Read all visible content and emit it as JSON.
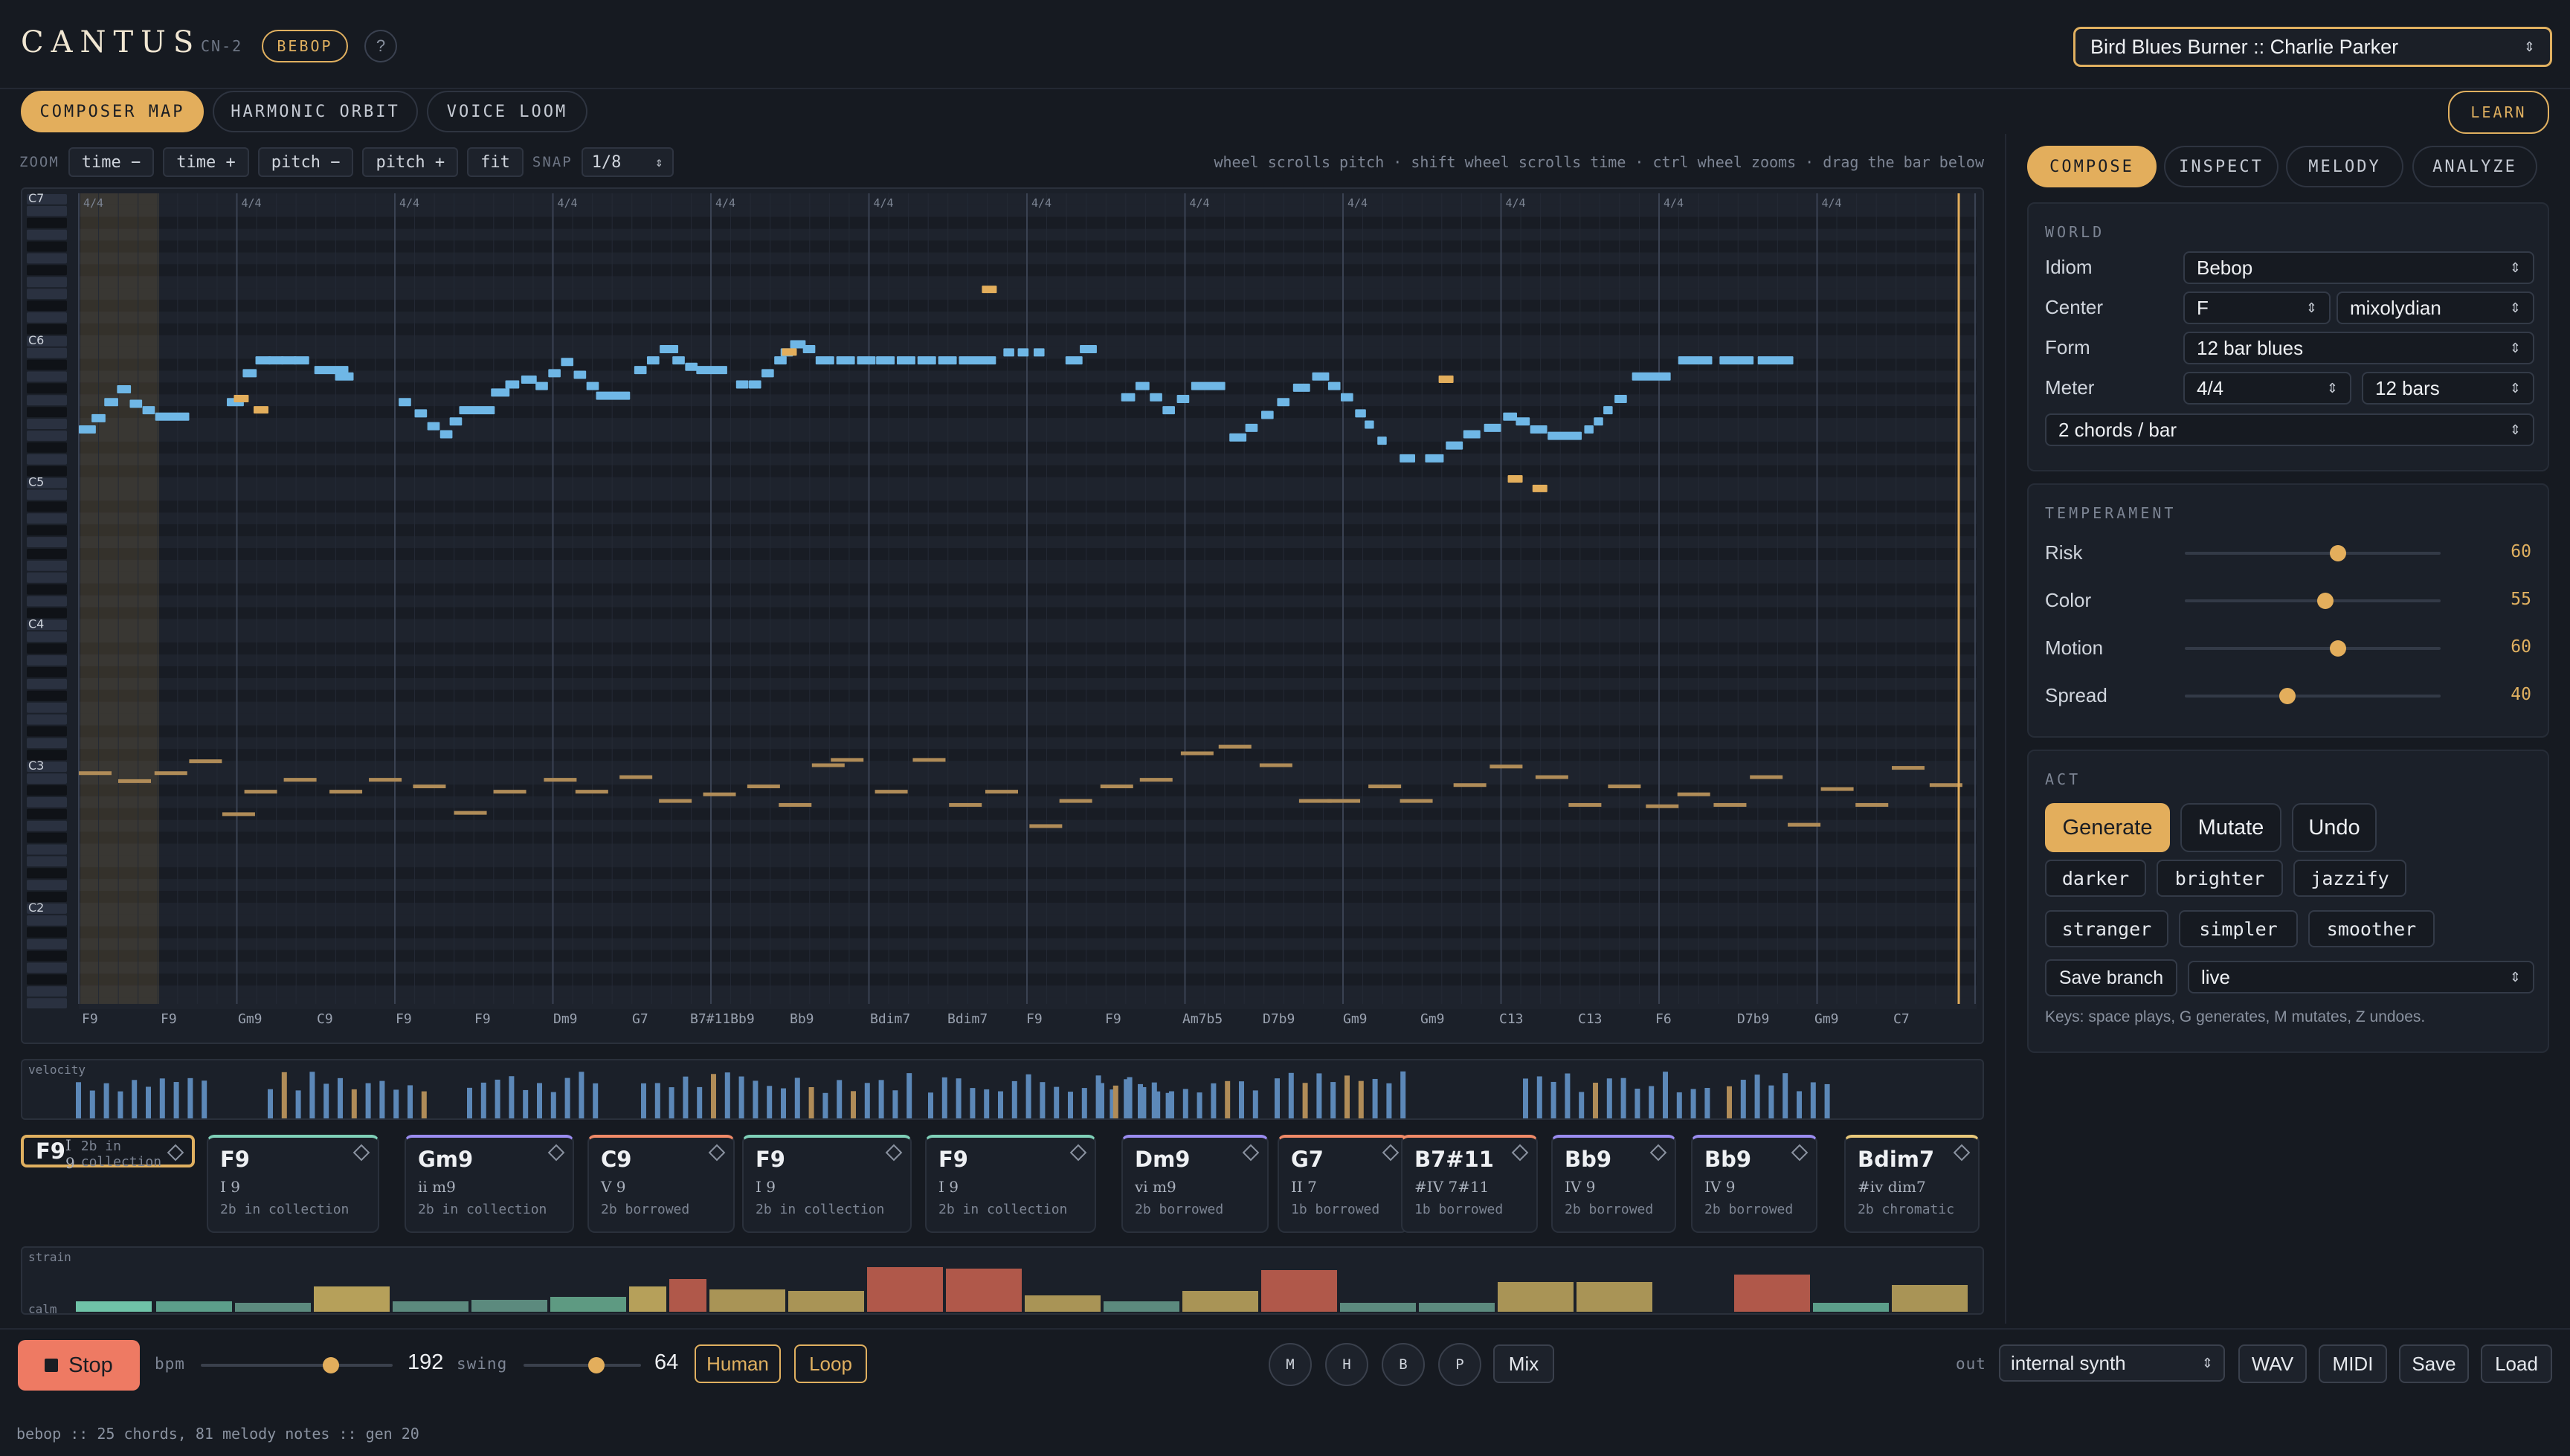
{
  "app": {
    "name": "CANTUS",
    "model": "CN-2",
    "idiom_badge": "BEBOP",
    "help": "?",
    "tune": "Bird Blues Burner :: Charlie Parker"
  },
  "view_tabs": [
    "COMPOSER MAP",
    "HARMONIC ORBIT",
    "VOICE LOOM"
  ],
  "learn": "LEARN",
  "zoom": {
    "label": "ZOOM",
    "time_minus": "time −",
    "time_plus": "time +",
    "pitch_minus": "pitch −",
    "pitch_plus": "pitch +",
    "fit": "fit",
    "snap_label": "SNAP",
    "snap_value": "1/8",
    "hint": "wheel scrolls pitch · shift wheel scrolls time · ctrl wheel zooms · drag the bar below"
  },
  "octaves": [
    "C7",
    "C6",
    "C5",
    "C4",
    "C3",
    "C2"
  ],
  "meter_marker": "4/4",
  "chord_axis": [
    "F9",
    "F9",
    "Gm9",
    "C9",
    "F9",
    "F9",
    "Dm9",
    "G7",
    "B7#11Bb9",
    "Bb9",
    "Bdim7",
    "Bdim7",
    "F9",
    "F9",
    "Am7b5",
    "D7b9",
    "Gm9",
    "Gm9",
    "C13",
    "C13",
    "F6",
    "D7b9",
    "Gm9",
    "C7"
  ],
  "velocity_label": "velocity",
  "chord_cards": [
    {
      "name": "F9",
      "func": "I 9",
      "coll": "2b in collection",
      "color": "#e0b060"
    },
    {
      "name": "F9",
      "func": "I 9",
      "coll": "2b in collection",
      "color": "#7fd0b8"
    },
    {
      "name": "Gm9",
      "func": "ii m9",
      "coll": "2b in collection",
      "color": "#9a8cf0"
    },
    {
      "name": "C9",
      "func": "V 9",
      "coll": "2b borrowed",
      "color": "#f08a68"
    },
    {
      "name": "F9",
      "func": "I 9",
      "coll": "2b in collection",
      "color": "#7fd0b8"
    },
    {
      "name": "F9",
      "func": "I 9",
      "coll": "2b in collection",
      "color": "#7fd0b8"
    },
    {
      "name": "Dm9",
      "func": "vi m9",
      "coll": "2b borrowed",
      "color": "#9a8cf0"
    },
    {
      "name": "G7",
      "func": "II 7",
      "coll": "1b borrowed",
      "color": "#f08a68"
    },
    {
      "name": "B7#11",
      "func": "#IV 7#11",
      "coll": "1b borrowed",
      "color": "#f08a68"
    },
    {
      "name": "Bb9",
      "func": "IV 9",
      "coll": "2b borrowed",
      "color": "#9a8cf0"
    },
    {
      "name": "Bb9",
      "func": "IV 9",
      "coll": "2b borrowed",
      "color": "#9a8cf0"
    },
    {
      "name": "Bdim7",
      "func": "#iv dim7",
      "coll": "2b chromatic",
      "color": "#e8c87a"
    }
  ],
  "strain": {
    "top": "strain",
    "bottom": "calm"
  },
  "transport": {
    "stop": "Stop",
    "bpm_label": "bpm",
    "bpm": "192",
    "bpm_level": 0.68,
    "swing_label": "swing",
    "swing": "64",
    "swing_level": 0.62,
    "human": "Human",
    "loop": "Loop",
    "mute_buttons": [
      "M",
      "H",
      "B",
      "P"
    ],
    "mix": "Mix",
    "out_label": "out",
    "out_value": "internal synth",
    "wav": "WAV",
    "midi": "MIDI",
    "save": "Save",
    "load": "Load"
  },
  "status": "bebop :: 25 chords, 81 melody notes :: gen 20",
  "side_tabs": [
    "COMPOSE",
    "INSPECT",
    "MELODY",
    "ANALYZE"
  ],
  "world": {
    "title": "WORLD",
    "idiom_label": "Idiom",
    "idiom": "Bebop",
    "center_label": "Center",
    "center_key": "F",
    "center_mode": "mixolydian",
    "form_label": "Form",
    "form": "12 bar blues",
    "meter_label": "Meter",
    "meter": "4/4",
    "bars": "12 bars",
    "density": "2 chords / bar"
  },
  "temperament": {
    "title": "TEMPERAMENT",
    "sliders": [
      {
        "label": "Risk",
        "value": "60",
        "level": 0.6
      },
      {
        "label": "Color",
        "value": "55",
        "level": 0.55
      },
      {
        "label": "Motion",
        "value": "60",
        "level": 0.6
      },
      {
        "label": "Spread",
        "value": "40",
        "level": 0.4
      }
    ]
  },
  "act": {
    "title": "ACT",
    "generate": "Generate",
    "mutate": "Mutate",
    "undo": "Undo",
    "moods": [
      "darker",
      "brighter",
      "jazzify",
      "stranger",
      "simpler",
      "smoother"
    ],
    "save_branch": "Save branch",
    "branch": "live",
    "keys_note": "Keys: space plays, G generates, M mutates, Z undoes."
  },
  "colors": {
    "accent": "#e3ae5c",
    "melody": "#6fb7e6",
    "bass": "#b08c58",
    "stop": "#ee7a63"
  }
}
